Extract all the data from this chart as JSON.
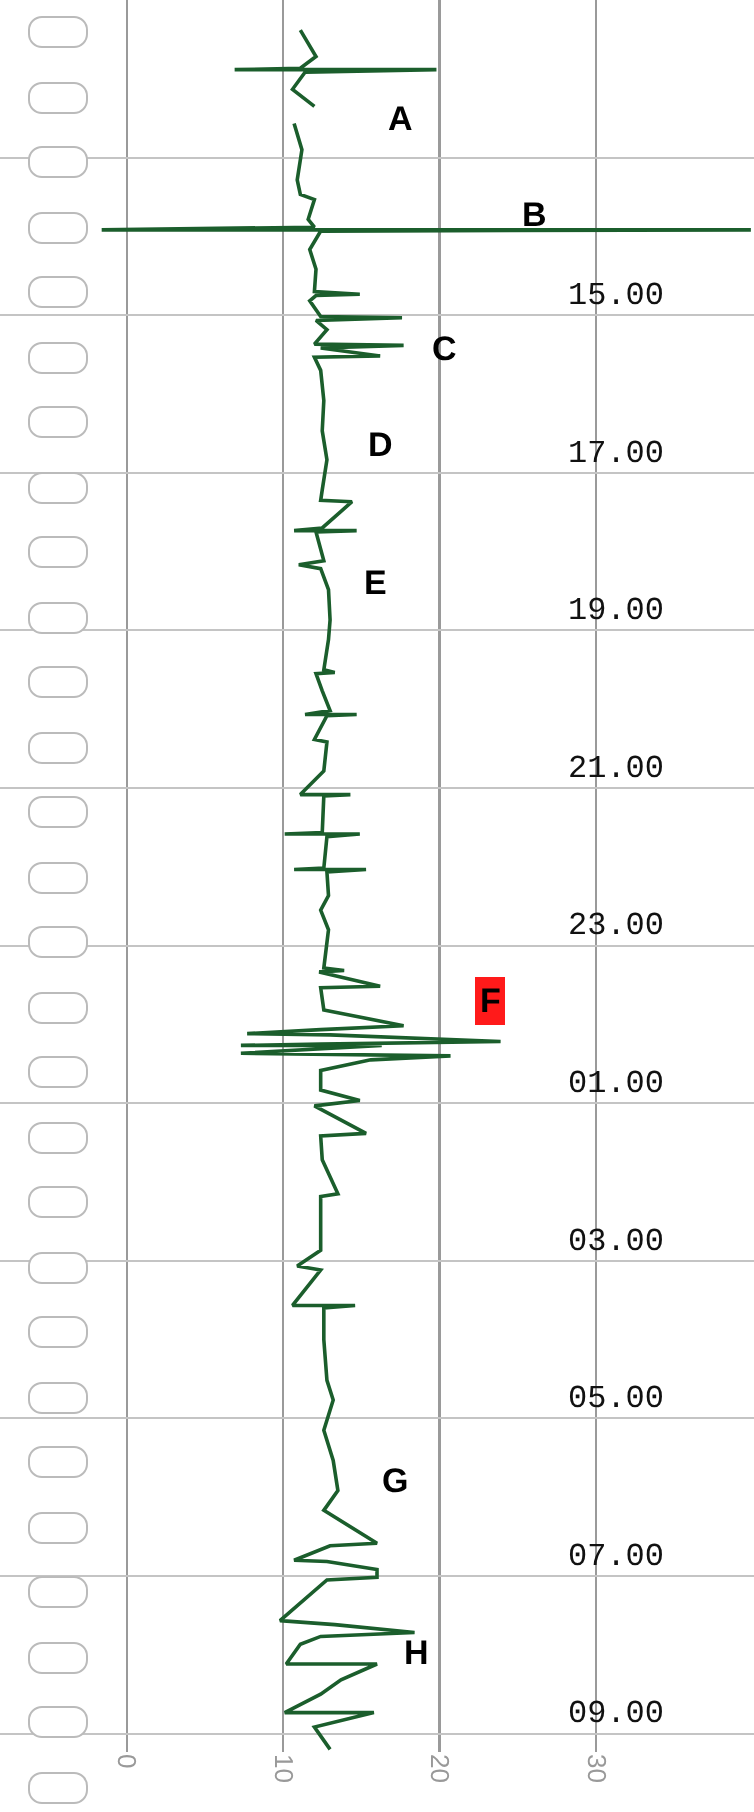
{
  "chart_data": {
    "type": "line",
    "orientation": "horizontal",
    "x": [
      "--01-01T11:23",
      "--01-01T11:43",
      "--01-01T11:52",
      "--01-01T11:53",
      "--01-01T11:53",
      "--01-01T11:55",
      "--01-01T12:08",
      "--01-01T12:21",
      "--01-01T12:30",
      "--01-01T12:34",
      "--01-01T12:54",
      "--01-01T13:17",
      "--01-01T13:28",
      "--01-01T13:32",
      "--01-01T13:47",
      "--01-01T13:53",
      "--01-01T13:55",
      "--01-01T13:55",
      "--01-01T13:56",
      "--01-01T14:10",
      "--01-01T14:25",
      "--01-01T14:42",
      "--01-01T14:44",
      "--01-01T14:45",
      "--01-01T14:49",
      "--01-01T15:01",
      "--01-01T15:02",
      "--01-01T15:04",
      "--01-01T15:11",
      "--01-01T15:22",
      "--01-01T15:23",
      "--01-01T15:25",
      "--01-01T15:31",
      "--01-01T15:32",
      "--01-01T15:42",
      "--01-01T16:05",
      "--01-01T16:28",
      "--01-01T16:50",
      "--01-01T17:13",
      "--01-01T17:21",
      "--01-01T17:22",
      "--01-01T17:42",
      "--01-01T17:44",
      "--01-01T17:44",
      "--01-01T17:45",
      "--01-01T18:07",
      "--01-01T18:10",
      "--01-01T18:13",
      "--01-01T18:29",
      "--01-01T18:52",
      "--01-01T19:07",
      "--01-01T19:30",
      "--01-01T19:32",
      "--01-01T19:33",
      "--01-01T19:46",
      "--01-01T20:01",
      "--01-01T20:04",
      "--01-01T20:04",
      "--01-01T20:05",
      "--01-01T20:23",
      "--01-01T20:25",
      "--01-01T20:47",
      "--01-01T21:05",
      "--01-01T21:05",
      "--01-01T21:06",
      "--01-01T21:34",
      "--01-01T21:35",
      "--01-01T21:35",
      "--01-01T21:37",
      "--01-01T22:01",
      "--01-01T22:02",
      "--01-01T22:02",
      "--01-01T22:04",
      "--01-01T22:22",
      "--01-01T22:33",
      "--01-01T22:48",
      "--01-01T23:17",
      "--01-01T23:19",
      "--01-01T23:20",
      "--01-01T23:31",
      "--01-01T23:32",
      "--01-01T23:49",
      "--01-02T00:01",
      "--01-02T00:04",
      "--01-02T00:07",
      "--01-02T00:08",
      "--01-02T00:13",
      "--01-02T00:15",
      "--01-02T00:16",
      "--01-02T00:16",
      "--01-02T00:22",
      "--01-02T00:24",
      "--01-02T00:27",
      "--01-02T00:35",
      "--01-02T00:50",
      "--01-02T00:58",
      "--01-02T01:02",
      "--01-02T01:23",
      "--01-02T01:25",
      "--01-02T01:43",
      "--01-02T02:09",
      "--01-02T02:11",
      "--01-02T02:29",
      "--01-02T02:52",
      "--01-02T03:04",
      "--01-02T03:07",
      "--01-02T03:34",
      "--01-02T03:34",
      "--01-02T03:36",
      "--01-02T04:00",
      "--01-02T04:31",
      "--01-02T04:46",
      "--01-02T05:09",
      "--01-02T05:32",
      "--01-02T05:55",
      "--01-02T06:10",
      "--01-02T06:35",
      "--01-02T06:37",
      "--01-02T06:48",
      "--01-02T06:49",
      "--01-02T06:55",
      "--01-02T07:01",
      "--01-02T07:03",
      "--01-02T07:34",
      "--01-02T07:37",
      "--01-02T07:43",
      "--01-02T07:46",
      "--01-02T07:52",
      "--01-02T08:07",
      "--01-02T08:07",
      "--01-02T08:19",
      "--01-02T08:30",
      "--01-02T08:44",
      "--01-02T08:44",
      "--01-02T08:55",
      "--01-02T09:12"
    ],
    "series": [
      {
        "color": "#1b5e2c",
        "values": [
          11.1,
          12.1,
          11.1,
          6.9,
          19.8,
          11.4,
          10.6,
          12.0,
          null,
          10.7,
          11.2,
          10.9,
          11.1,
          12.0,
          11.6,
          12.0,
          -1.6,
          39.9,
          12.4,
          11.7,
          12.1,
          12.0,
          14.9,
          12.1,
          11.7,
          12.4,
          17.6,
          12.1,
          12.8,
          12.0,
          17.7,
          12.4,
          16.2,
          12.0,
          12.4,
          12.6,
          12.5,
          12.8,
          12.5,
          12.4,
          14.4,
          12.5,
          10.7,
          14.7,
          12.1,
          12.6,
          11.0,
          12.4,
          12.9,
          13.0,
          12.9,
          12.6,
          13.3,
          12.1,
          12.5,
          13.0,
          11.4,
          14.7,
          12.8,
          12.0,
          12.8,
          12.6,
          11.1,
          14.3,
          12.6,
          12.5,
          10.1,
          14.9,
          12.8,
          12.6,
          10.7,
          15.3,
          12.8,
          12.9,
          12.4,
          12.9,
          12.6,
          13.9,
          12.3,
          16.2,
          12.4,
          12.6,
          17.7,
          12.4,
          7.7,
          13.0,
          23.9,
          12.4,
          7.3,
          16.3,
          7.3,
          20.7,
          15.6,
          12.4,
          12.4,
          14.9,
          12.0,
          15.3,
          12.4,
          12.5,
          13.5,
          12.4,
          12.4,
          12.4,
          10.9,
          12.4,
          10.6,
          14.6,
          12.6,
          12.6,
          12.8,
          13.2,
          12.6,
          13.2,
          13.5,
          12.6,
          16.0,
          13.0,
          10.7,
          12.8,
          16.0,
          16.0,
          12.8,
          9.8,
          13.3,
          18.4,
          12.4,
          11.1,
          10.2,
          16.0,
          13.7,
          12.4,
          10.1,
          15.8,
          12.0,
          13.0
        ]
      }
    ],
    "xlim": [
      -8.1,
      40.1
    ],
    "xticks": [
      0,
      10,
      20,
      30
    ],
    "ylim": [
      "--01-02T09:14",
      "--01-01T11:00"
    ],
    "yticks": [
      {
        "value": "--01-01T13:00",
        "label": null
      },
      {
        "value": "--01-01T15:00",
        "label": "15.00"
      },
      {
        "value": "--01-01T17:00",
        "label": "17.00"
      },
      {
        "value": "--01-01T19:00",
        "label": "19.00"
      },
      {
        "value": "--01-01T21:00",
        "label": "21.00"
      },
      {
        "value": "--01-01T23:00",
        "label": "23.00"
      },
      {
        "value": "--01-02T01:00",
        "label": "01.00"
      },
      {
        "value": "--01-02T03:00",
        "label": "03.00"
      },
      {
        "value": "--01-02T05:00",
        "label": "05.00"
      },
      {
        "value": "--01-02T07:00",
        "label": "07.00"
      },
      {
        "value": "--01-02T09:00",
        "label": "09.00"
      }
    ],
    "grid": true,
    "annotations": [
      "A",
      "B",
      "C",
      "D",
      "E",
      "F",
      "G",
      "H"
    ]
  }
}
